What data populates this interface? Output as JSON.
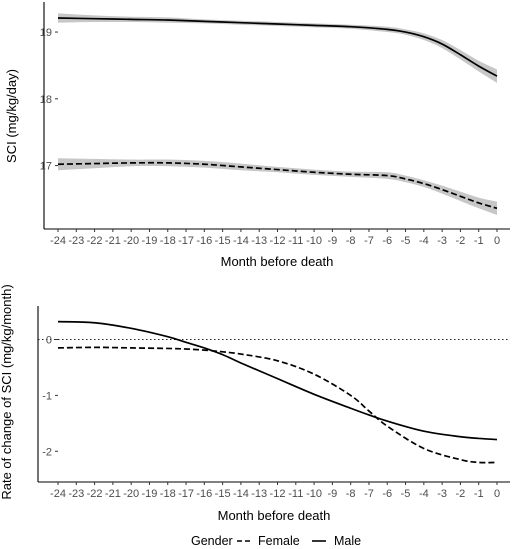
{
  "chart_data": [
    {
      "type": "line",
      "xlabel": "Month before death",
      "ylabel": "SCI (mg/kg/day)",
      "xlim": [
        -24,
        0
      ],
      "ylim": [
        16.05,
        19.45
      ],
      "x_ticks": [
        -24,
        -23,
        -22,
        -21,
        -20,
        -19,
        -18,
        -17,
        -16,
        -15,
        -14,
        -13,
        -12,
        -11,
        -10,
        -9,
        -8,
        -7,
        -6,
        -5,
        -4,
        -3,
        -2,
        -1,
        0
      ],
      "y_ticks": [
        17,
        18,
        19
      ],
      "confidence_band": true,
      "grid": false,
      "x": [
        -24,
        -22,
        -20,
        -18,
        -16,
        -14,
        -12,
        -10,
        -8,
        -6,
        -5,
        -4,
        -3,
        -2,
        -1,
        0
      ],
      "series": [
        {
          "linestyle": "solid",
          "color": "#000000",
          "values": [
            19.21,
            19.2,
            19.19,
            19.18,
            19.16,
            19.14,
            19.12,
            19.1,
            19.08,
            19.04,
            19.0,
            18.93,
            18.82,
            18.66,
            18.49,
            18.34
          ],
          "band_halfwidth": [
            0.07,
            0.05,
            0.04,
            0.04,
            0.03,
            0.03,
            0.03,
            0.03,
            0.03,
            0.04,
            0.04,
            0.05,
            0.06,
            0.07,
            0.08,
            0.1
          ]
        },
        {
          "linestyle": "dashed",
          "color": "#000000",
          "values": [
            17.02,
            17.03,
            17.04,
            17.04,
            17.02,
            16.98,
            16.94,
            16.9,
            16.87,
            16.85,
            16.8,
            16.73,
            16.64,
            16.54,
            16.44,
            16.36
          ],
          "band_halfwidth": [
            0.09,
            0.07,
            0.05,
            0.05,
            0.05,
            0.05,
            0.04,
            0.04,
            0.04,
            0.05,
            0.05,
            0.05,
            0.06,
            0.07,
            0.08,
            0.1
          ]
        }
      ]
    },
    {
      "type": "line",
      "xlabel": "Month before death",
      "ylabel": "Rate of change of SCI (mg/kg/month)",
      "xlim": [
        -24,
        0
      ],
      "ylim": [
        -2.55,
        0.6
      ],
      "x_ticks": [
        -24,
        -23,
        -22,
        -21,
        -20,
        -19,
        -18,
        -17,
        -16,
        -15,
        -14,
        -13,
        -12,
        -11,
        -10,
        -9,
        -8,
        -7,
        -6,
        -5,
        -4,
        -3,
        -2,
        -1,
        0
      ],
      "y_ticks": [
        -2,
        -1,
        0
      ],
      "reference_line": {
        "y": 0,
        "style": "dotted"
      },
      "grid": false,
      "x": [
        -24,
        -22,
        -20,
        -18,
        -17,
        -16,
        -15,
        -14,
        -12,
        -10,
        -8,
        -7,
        -6,
        -4,
        -2,
        -1,
        0
      ],
      "series": [
        {
          "name": "Male",
          "linestyle": "solid",
          "color": "#000000",
          "values": [
            0.32,
            0.3,
            0.2,
            0.05,
            -0.05,
            -0.15,
            -0.27,
            -0.42,
            -0.7,
            -0.98,
            -1.23,
            -1.35,
            -1.46,
            -1.64,
            -1.74,
            -1.77,
            -1.79
          ]
        },
        {
          "name": "Female",
          "linestyle": "dashed",
          "color": "#000000",
          "values": [
            -0.15,
            -0.14,
            -0.15,
            -0.16,
            -0.17,
            -0.19,
            -0.22,
            -0.26,
            -0.38,
            -0.62,
            -1.0,
            -1.28,
            -1.55,
            -1.95,
            -2.15,
            -2.2,
            -2.2
          ]
        }
      ]
    }
  ],
  "legend": {
    "title": "Gender",
    "entries": [
      {
        "label": "Female",
        "linestyle": "dashed"
      },
      {
        "label": "Male",
        "linestyle": "solid"
      }
    ],
    "position": "bottom"
  }
}
